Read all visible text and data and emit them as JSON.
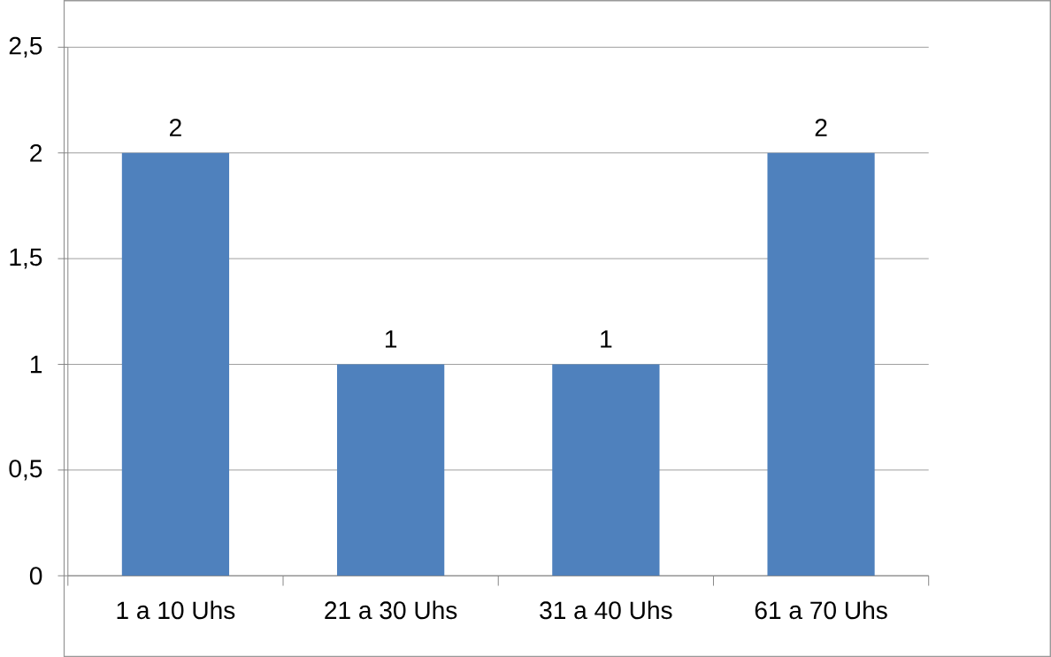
{
  "chart_data": {
    "type": "bar",
    "categories": [
      "1 a 10 Uhs",
      "21 a 30 Uhs",
      "31 a 40 Uhs",
      "61 a 70 Uhs"
    ],
    "values": [
      2,
      1,
      1,
      2
    ],
    "color": "#4f81bd",
    "ylim": [
      0,
      2.5
    ],
    "yticks": [
      0,
      {
        "value": 0.5,
        "label": "0,5"
      },
      1,
      {
        "value": 1.5,
        "label": "1,5"
      },
      2,
      {
        "value": 2.5,
        "label": "2,5"
      }
    ],
    "grid": "y",
    "data_labels": true
  }
}
